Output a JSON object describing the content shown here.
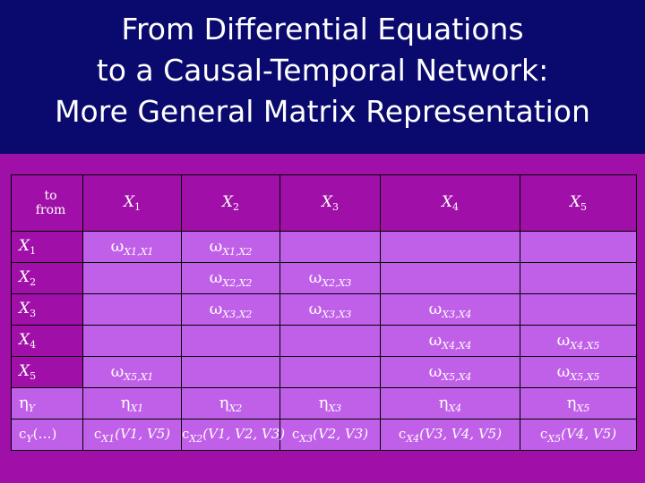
{
  "slide": {
    "title_lines": [
      "From Differential Equations",
      "to a Causal-Temporal Network:",
      "More General Matrix Representation"
    ]
  },
  "matrix": {
    "corner": {
      "to": "to",
      "from": "from"
    },
    "columns": [
      {
        "var": "X",
        "sub": "1"
      },
      {
        "var": "X",
        "sub": "2"
      },
      {
        "var": "X",
        "sub": "3"
      },
      {
        "var": "X",
        "sub": "4"
      },
      {
        "var": "X",
        "sub": "5"
      }
    ],
    "rows": [
      {
        "label": {
          "var": "X",
          "sub": "1"
        },
        "cells": [
          {
            "sym": "ω",
            "sub": "X1,X1"
          },
          {
            "sym": "ω",
            "sub": "X1,X2"
          },
          null,
          null,
          null
        ]
      },
      {
        "label": {
          "var": "X",
          "sub": "2"
        },
        "cells": [
          null,
          {
            "sym": "ω",
            "sub": "X2,X2"
          },
          {
            "sym": "ω",
            "sub": "X2,X3"
          },
          null,
          null
        ]
      },
      {
        "label": {
          "var": "X",
          "sub": "3"
        },
        "cells": [
          null,
          {
            "sym": "ω",
            "sub": "X3,X2"
          },
          {
            "sym": "ω",
            "sub": "X3,X3"
          },
          {
            "sym": "ω",
            "sub": "X3,X4"
          },
          null
        ]
      },
      {
        "label": {
          "var": "X",
          "sub": "4"
        },
        "cells": [
          null,
          null,
          null,
          {
            "sym": "ω",
            "sub": "X4,X4"
          },
          {
            "sym": "ω",
            "sub": "X4,X5"
          }
        ]
      },
      {
        "label": {
          "var": "X",
          "sub": "5"
        },
        "cells": [
          {
            "sym": "ω",
            "sub": "X5,X1"
          },
          null,
          null,
          {
            "sym": "ω",
            "sub": "X5,X4"
          },
          {
            "sym": "ω",
            "sub": "X5,X5"
          }
        ]
      }
    ],
    "eta_row": {
      "label": {
        "sym": "η",
        "sub": "Y"
      },
      "cells": [
        {
          "sym": "η",
          "sub": "X1"
        },
        {
          "sym": "η",
          "sub": "X2"
        },
        {
          "sym": "η",
          "sub": "X3"
        },
        {
          "sym": "η",
          "sub": "X4"
        },
        {
          "sym": "η",
          "sub": "X5"
        }
      ]
    },
    "c_row": {
      "label": {
        "text": "c",
        "sub": "Y",
        "rest": "(…)"
      },
      "cells": [
        {
          "text": "c",
          "sub": "X1",
          "args": "(V1, V5)"
        },
        {
          "text": "c",
          "sub": "X2",
          "args": "(V1, V2, V3)"
        },
        {
          "text": "c",
          "sub": "X3",
          "args": "(V2, V3)"
        },
        {
          "text": "c",
          "sub": "X4",
          "args": "(V3, V4, V5)"
        },
        {
          "text": "c",
          "sub": "X5",
          "args": "(V4, V5)"
        }
      ]
    }
  }
}
